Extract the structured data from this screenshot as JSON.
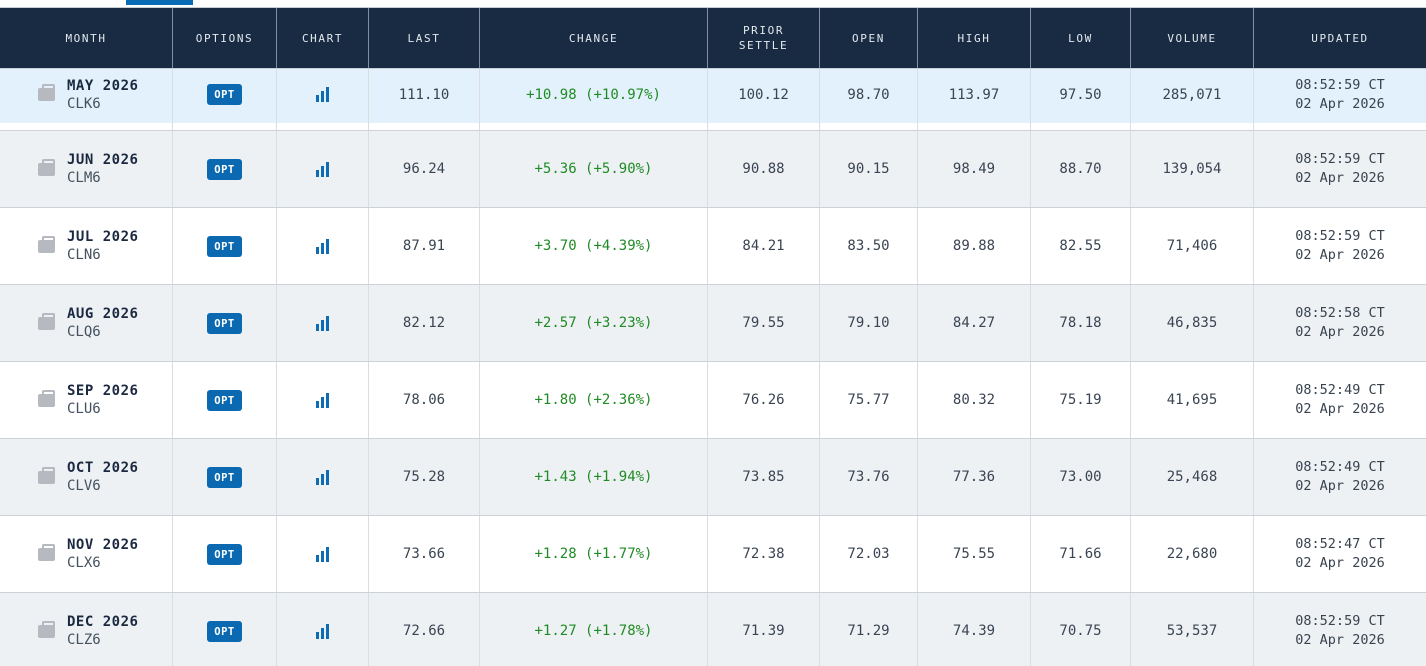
{
  "colors": {
    "header_bg": "#182b42",
    "accent_blue": "#0a69b1",
    "tab_indicator_blue": "#0a6cb5",
    "change_green": "#1f8b24",
    "flash_row_blue": "#e2f1fb",
    "alt_row_gray": "#eef1f4"
  },
  "table": {
    "opt_label": "OPT",
    "columns": {
      "month": "MONTH",
      "options": "OPTIONS",
      "chart": "CHART",
      "last": "LAST",
      "change": "CHANGE",
      "prior_settle": "PRIOR\nSETTLE",
      "open": "OPEN",
      "high": "HIGH",
      "low": "LOW",
      "volume": "VOLUME",
      "updated": "UPDATED"
    },
    "rows": [
      {
        "month": "MAY 2026",
        "code": "CLK6",
        "last": "111.10",
        "change": "+10.98 (+10.97%)",
        "prior_settle": "100.12",
        "open": "98.70",
        "high": "113.97",
        "low": "97.50",
        "volume": "285,071",
        "updated_time": "08:52:59 CT",
        "updated_date": "02 Apr 2026"
      },
      {
        "month": "JUN 2026",
        "code": "CLM6",
        "last": "96.24",
        "change": "+5.36 (+5.90%)",
        "prior_settle": "90.88",
        "open": "90.15",
        "high": "98.49",
        "low": "88.70",
        "volume": "139,054",
        "updated_time": "08:52:59 CT",
        "updated_date": "02 Apr 2026"
      },
      {
        "month": "JUL 2026",
        "code": "CLN6",
        "last": "87.91",
        "change": "+3.70 (+4.39%)",
        "prior_settle": "84.21",
        "open": "83.50",
        "high": "89.88",
        "low": "82.55",
        "volume": "71,406",
        "updated_time": "08:52:59 CT",
        "updated_date": "02 Apr 2026"
      },
      {
        "month": "AUG 2026",
        "code": "CLQ6",
        "last": "82.12",
        "change": "+2.57 (+3.23%)",
        "prior_settle": "79.55",
        "open": "79.10",
        "high": "84.27",
        "low": "78.18",
        "volume": "46,835",
        "updated_time": "08:52:58 CT",
        "updated_date": "02 Apr 2026"
      },
      {
        "month": "SEP 2026",
        "code": "CLU6",
        "last": "78.06",
        "change": "+1.80 (+2.36%)",
        "prior_settle": "76.26",
        "open": "75.77",
        "high": "80.32",
        "low": "75.19",
        "volume": "41,695",
        "updated_time": "08:52:49 CT",
        "updated_date": "02 Apr 2026"
      },
      {
        "month": "OCT 2026",
        "code": "CLV6",
        "last": "75.28",
        "change": "+1.43 (+1.94%)",
        "prior_settle": "73.85",
        "open": "73.76",
        "high": "77.36",
        "low": "73.00",
        "volume": "25,468",
        "updated_time": "08:52:49 CT",
        "updated_date": "02 Apr 2026"
      },
      {
        "month": "NOV 2026",
        "code": "CLX6",
        "last": "73.66",
        "change": "+1.28 (+1.77%)",
        "prior_settle": "72.38",
        "open": "72.03",
        "high": "75.55",
        "low": "71.66",
        "volume": "22,680",
        "updated_time": "08:52:47 CT",
        "updated_date": "02 Apr 2026"
      },
      {
        "month": "DEC 2026",
        "code": "CLZ6",
        "last": "72.66",
        "change": "+1.27 (+1.78%)",
        "prior_settle": "71.39",
        "open": "71.29",
        "high": "74.39",
        "low": "70.75",
        "volume": "53,537",
        "updated_time": "08:52:59 CT",
        "updated_date": "02 Apr 2026"
      }
    ]
  }
}
